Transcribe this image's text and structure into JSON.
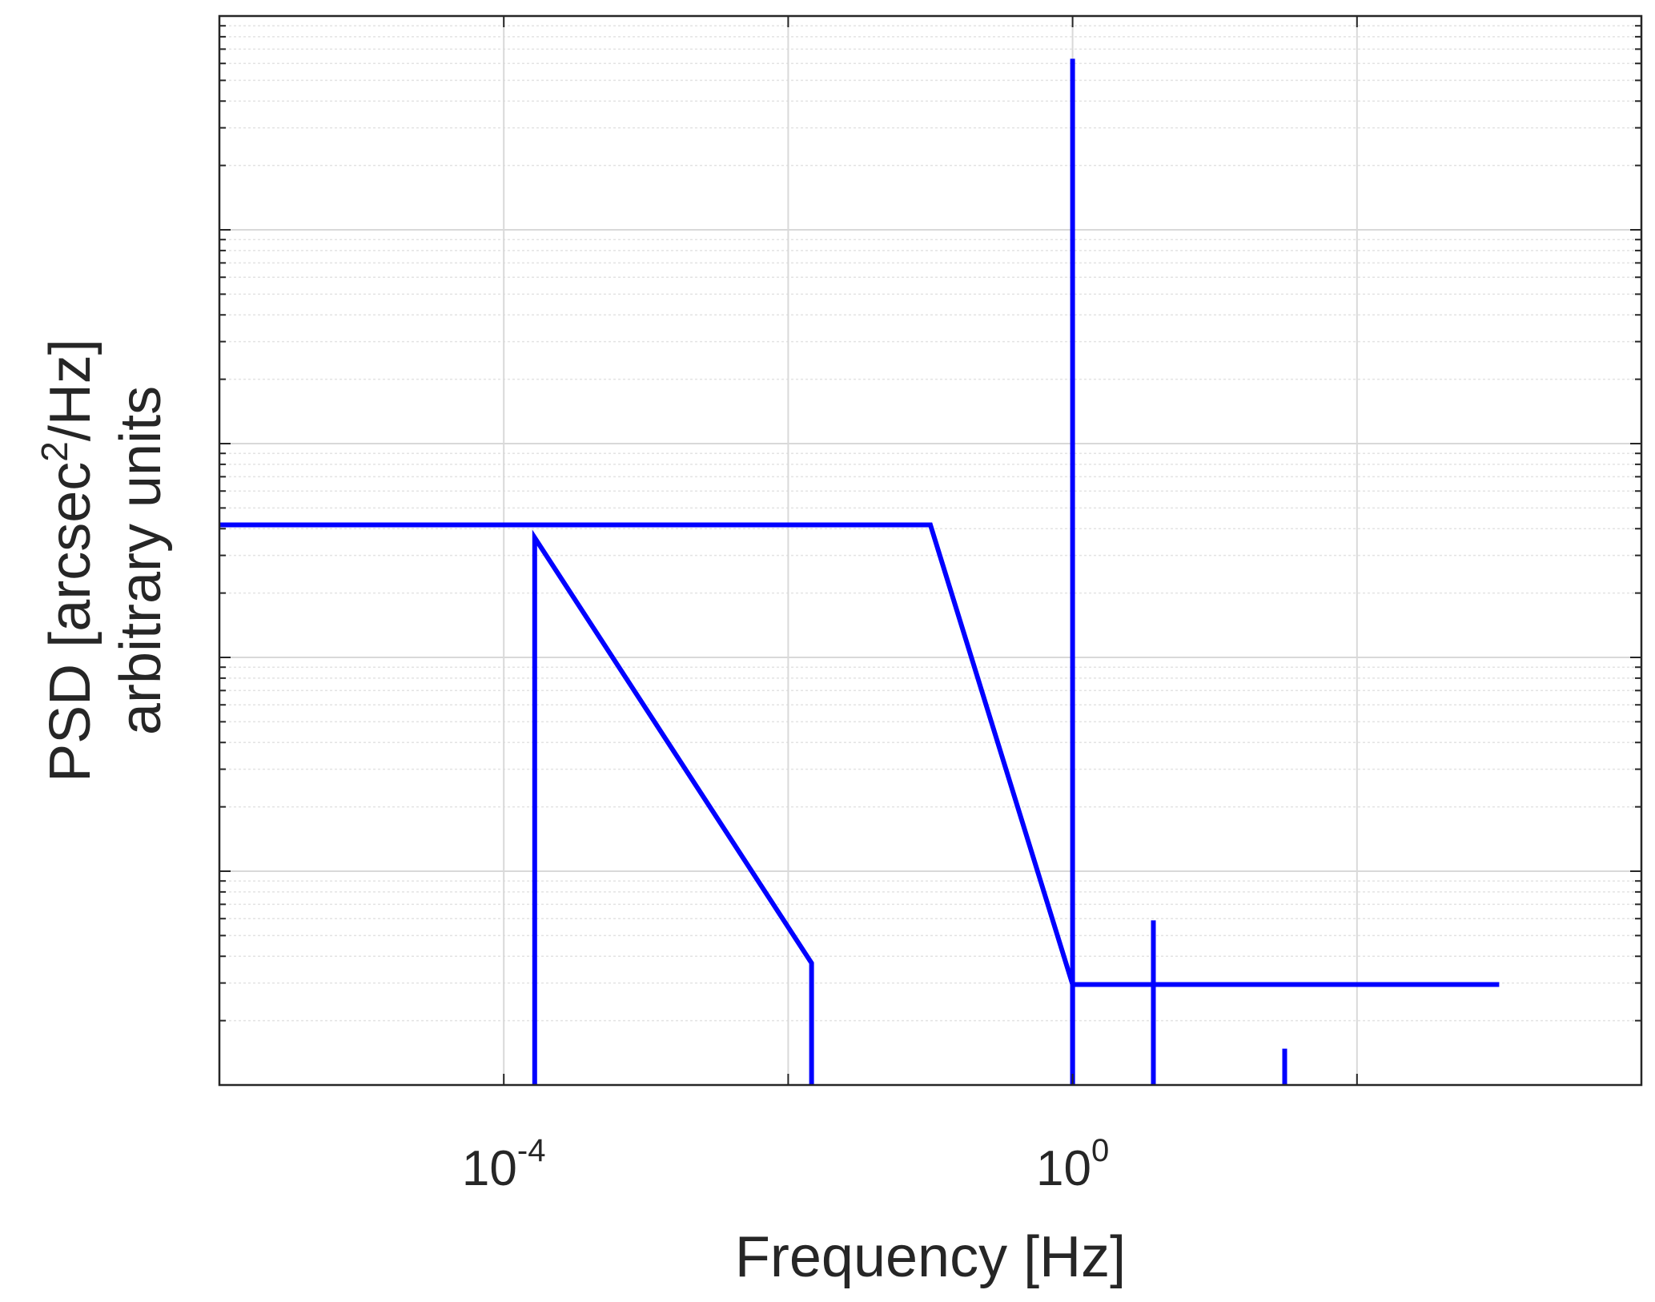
{
  "chart_data": {
    "type": "line",
    "xlabel": "Frequency [Hz]",
    "ylabel_lines": [
      "arbitrary units"
    ],
    "ylabel_parts": {
      "before": "PSD [arcsec",
      "superscript": "2",
      "after": "/Hz]"
    },
    "x_scale": "log",
    "y_scale": "log",
    "xlim": [
      1e-06,
      10000
    ],
    "ylim_decades": [
      0,
      5
    ],
    "x_ticks": [
      {
        "value": 0.0001,
        "base": "10",
        "exponent": "-4"
      },
      {
        "value": 1,
        "base": "10",
        "exponent": "0"
      }
    ],
    "y_tick_labels": "none",
    "grid": true,
    "minor_grid": true,
    "line_color": "#0000ff",
    "series": [
      {
        "points": [
          [
            1e-06,
            2.62
          ],
          [
            0.1,
            2.62
          ],
          [
            1.0,
            0.47
          ],
          [
            1.0,
            0.0
          ]
        ]
      },
      {
        "points": [
          [
            0.000165,
            0.0
          ],
          [
            0.000165,
            2.56
          ],
          [
            0.0146,
            0.57
          ],
          [
            0.0146,
            0.0
          ]
        ]
      },
      {
        "points": [
          [
            1.0,
            0.47
          ],
          [
            1000,
            0.47
          ]
        ]
      },
      {
        "points": [
          [
            1.0,
            0.0
          ],
          [
            1.0,
            4.8
          ]
        ]
      },
      {
        "points": [
          [
            3.7,
            0.0
          ],
          [
            3.7,
            0.77
          ]
        ]
      },
      {
        "points": [
          [
            31,
            0.0
          ],
          [
            31,
            0.17
          ]
        ]
      }
    ]
  }
}
